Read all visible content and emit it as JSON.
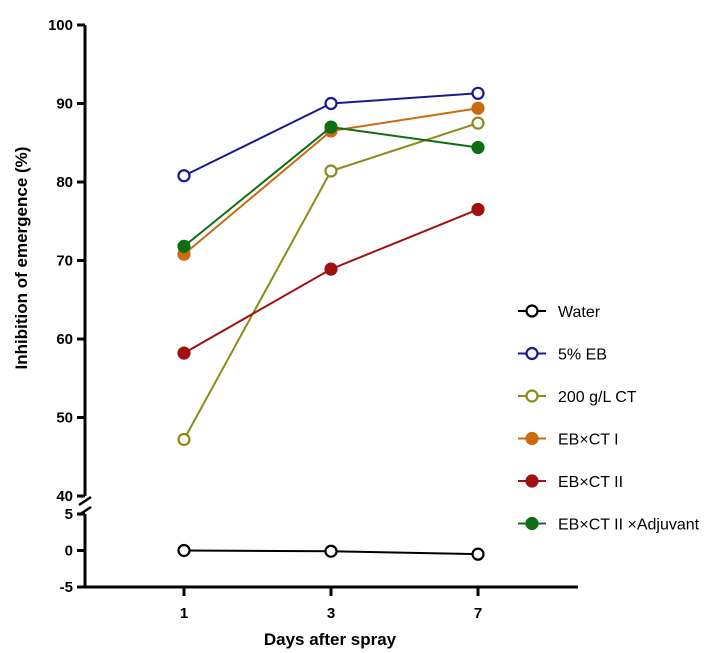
{
  "chart_data": {
    "type": "line",
    "categories": [
      "1",
      "3",
      "7"
    ],
    "xlabel": "Days after spray",
    "ylabel": "Inhibition of emergence (%)",
    "y_axis_break": true,
    "ylim_upper": [
      40,
      100
    ],
    "yticks_upper": [
      "40",
      "50",
      "60",
      "70",
      "80",
      "90",
      "100"
    ],
    "ylim_lower": [
      -5,
      5
    ],
    "yticks_lower": [
      "-5",
      "0",
      "5"
    ],
    "legend_position": "right",
    "series": [
      {
        "name": "Water",
        "values": [
          0,
          -0.1,
          -0.5
        ],
        "color": "#000000",
        "marker": "open-circle"
      },
      {
        "name": "5% EB",
        "values": [
          80.8,
          90.0,
          91.3
        ],
        "color": "#1a1a8c",
        "marker": "open-circle"
      },
      {
        "name": "200 g/L CT",
        "values": [
          47.2,
          81.4,
          87.5
        ],
        "color": "#8c8c1a",
        "marker": "open-circle"
      },
      {
        "name": "EB×CT I",
        "values": [
          70.8,
          86.5,
          89.4
        ],
        "color": "#cc6a10",
        "marker": "filled-circle"
      },
      {
        "name": "EB×CT II",
        "values": [
          58.2,
          68.9,
          76.5
        ],
        "color": "#a01010",
        "marker": "filled-circle"
      },
      {
        "name": "EB×CT II ×Adjuvant",
        "values": [
          71.8,
          87.0,
          84.4
        ],
        "color": "#0e6e14",
        "marker": "filled-circle"
      }
    ]
  }
}
